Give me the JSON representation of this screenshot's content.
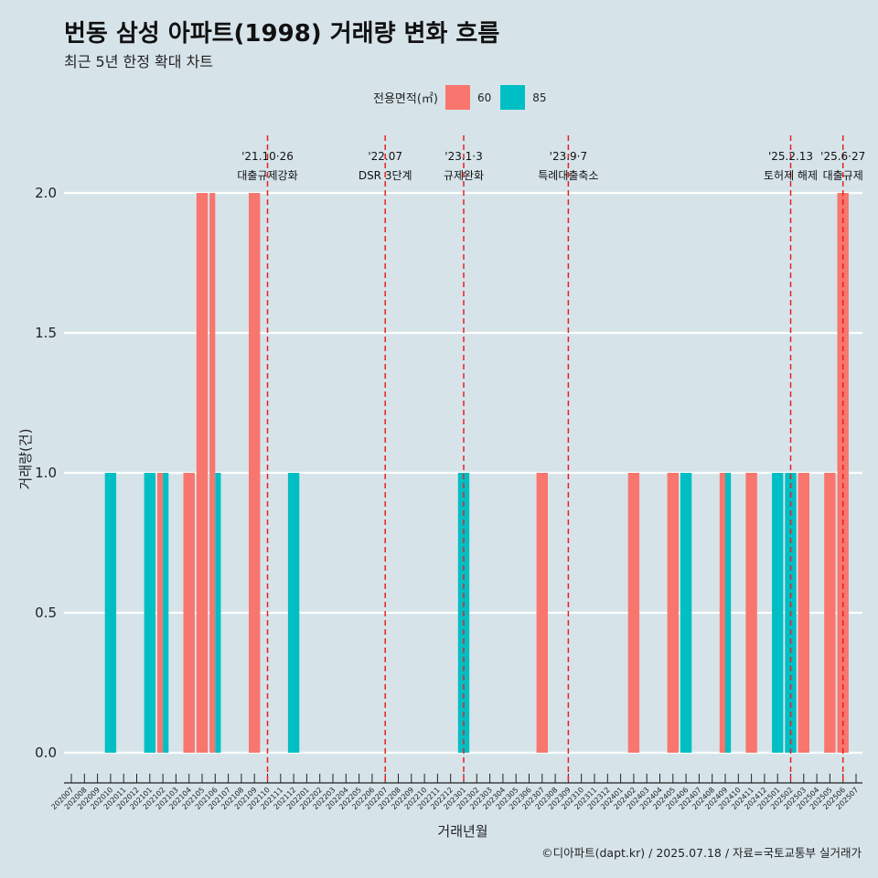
{
  "header": {
    "title": "번동 삼성 아파트(1998) 거래량 변화 흐름",
    "subtitle": "최근 5년 한정 확대 차트"
  },
  "legend": {
    "title": "전용면적(㎡)",
    "items": [
      {
        "label": "60",
        "color": "#f8766d"
      },
      {
        "label": "85",
        "color": "#00bfc4"
      }
    ]
  },
  "footer": "©디아파트(dapt.kr) / 2025.07.18 / 자료=국토교통부 실거래가",
  "chart_data": {
    "type": "bar",
    "xlabel": "거래년월",
    "ylabel": "거래량(건)",
    "ylim": [
      0,
      2
    ],
    "yticks": [
      0.0,
      0.5,
      1.0,
      1.5,
      2.0
    ],
    "ytick_labels": [
      "0.0",
      "0.5",
      "1.0",
      "1.5",
      "2.0"
    ],
    "categories": [
      "202007",
      "202008",
      "202009",
      "202010",
      "202011",
      "202012",
      "202101",
      "202102",
      "202103",
      "202104",
      "202105",
      "202106",
      "202107",
      "202108",
      "202109",
      "202110",
      "202111",
      "202112",
      "202201",
      "202202",
      "202203",
      "202204",
      "202205",
      "202206",
      "202207",
      "202208",
      "202209",
      "202210",
      "202211",
      "202212",
      "202301",
      "202302",
      "202303",
      "202304",
      "202305",
      "202306",
      "202307",
      "202308",
      "202309",
      "202310",
      "202311",
      "202312",
      "202401",
      "202402",
      "202403",
      "202404",
      "202405",
      "202406",
      "202407",
      "202408",
      "202409",
      "202410",
      "202411",
      "202412",
      "202501",
      "202502",
      "202503",
      "202504",
      "202505",
      "202506",
      "202507"
    ],
    "bars": [
      {
        "x": "202010",
        "series": "85",
        "value": 1,
        "pos": "full"
      },
      {
        "x": "202101",
        "series": "85",
        "value": 1,
        "pos": "full"
      },
      {
        "x": "202102",
        "series": "60",
        "value": 1,
        "pos": "left"
      },
      {
        "x": "202102",
        "series": "85",
        "value": 1,
        "pos": "right"
      },
      {
        "x": "202104",
        "series": "60",
        "value": 1,
        "pos": "full"
      },
      {
        "x": "202105",
        "series": "60",
        "value": 2,
        "pos": "full"
      },
      {
        "x": "202106",
        "series": "60",
        "value": 2,
        "pos": "left"
      },
      {
        "x": "202106",
        "series": "85",
        "value": 1,
        "pos": "right"
      },
      {
        "x": "202109",
        "series": "60",
        "value": 2,
        "pos": "full"
      },
      {
        "x": "202112",
        "series": "85",
        "value": 1,
        "pos": "full"
      },
      {
        "x": "202301",
        "series": "85",
        "value": 1,
        "pos": "full"
      },
      {
        "x": "202307",
        "series": "60",
        "value": 1,
        "pos": "full"
      },
      {
        "x": "202402",
        "series": "60",
        "value": 1,
        "pos": "full"
      },
      {
        "x": "202405",
        "series": "60",
        "value": 1,
        "pos": "full"
      },
      {
        "x": "202406",
        "series": "85",
        "value": 1,
        "pos": "full"
      },
      {
        "x": "202409",
        "series": "60",
        "value": 1,
        "pos": "left"
      },
      {
        "x": "202409",
        "series": "85",
        "value": 1,
        "pos": "right"
      },
      {
        "x": "202411",
        "series": "60",
        "value": 1,
        "pos": "full"
      },
      {
        "x": "202501",
        "series": "85",
        "value": 1,
        "pos": "full"
      },
      {
        "x": "202502",
        "series": "85",
        "value": 1,
        "pos": "full"
      },
      {
        "x": "202503",
        "series": "60",
        "value": 1,
        "pos": "full"
      },
      {
        "x": "202505",
        "series": "60",
        "value": 1,
        "pos": "full"
      },
      {
        "x": "202506",
        "series": "60",
        "value": 2,
        "pos": "full"
      }
    ],
    "annotations": [
      {
        "x": "202110",
        "line1": "'21.10·26",
        "line2": "대출규제강화"
      },
      {
        "x": "202207",
        "line1": "'22.07",
        "line2": "DSR 3단계"
      },
      {
        "x": "202301",
        "line1": "'23.1·3",
        "line2": "규제완화"
      },
      {
        "x": "202309",
        "line1": "'23.9·7",
        "line2": "특례대출축소"
      },
      {
        "x": "202502",
        "line1": "'25.2.13",
        "line2": "토허제 해제"
      },
      {
        "x": "202506",
        "line1": "'25.6·27",
        "line2": "대출규제"
      }
    ]
  }
}
